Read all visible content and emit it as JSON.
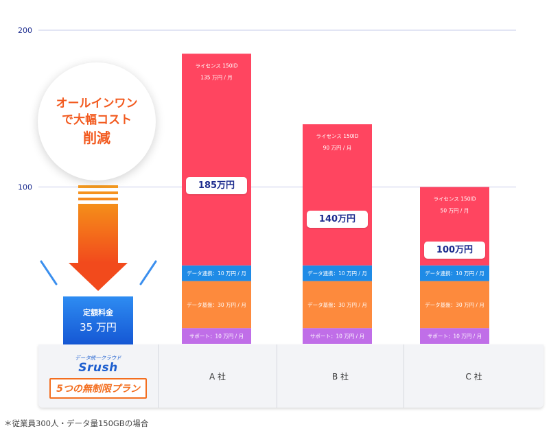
{
  "chart_data": {
    "type": "bar",
    "stacked": true,
    "unit": "万円",
    "yticks": [
      100,
      200
    ],
    "ylim": [
      0,
      200
    ],
    "categories": [
      "A 社",
      "B 社",
      "C 社"
    ],
    "series": [
      {
        "name": "サポート",
        "values": [
          10,
          10,
          10
        ],
        "labels": [
          "サポート：10 万円 / 月",
          "サポート：10 万円 / 月",
          "サポート：10 万円 / 月"
        ],
        "color": "#c06ee8"
      },
      {
        "name": "データ基盤",
        "values": [
          30,
          30,
          30
        ],
        "labels": [
          "データ基盤：30 万円 / 月",
          "データ基盤：30 万円 / 月",
          "データ基盤：30 万円 / 月"
        ],
        "color": "#fd8a3d"
      },
      {
        "name": "データ連携",
        "values": [
          10,
          10,
          10
        ],
        "labels": [
          "データ連携：10 万円 / 月",
          "データ連携：10 万円 / 月",
          "データ連携：10 万円 / 月"
        ],
        "color": "#1f8be6"
      },
      {
        "name": "ライセンス",
        "values": [
          135,
          90,
          50
        ],
        "labels": [
          "ライセンス 150ID",
          "ライセンス 150ID",
          "ライセンス 150ID"
        ],
        "sublabels": [
          "135 万円 / 月",
          "90 万円 / 月",
          "50 万円 / 月"
        ],
        "color": "#ff4560"
      }
    ],
    "totals": [
      185,
      140,
      100
    ],
    "total_labels": [
      "185万円",
      "140万円",
      "100万円"
    ],
    "baseline": {
      "value": 35,
      "label1": "定額料金",
      "label2": "35 万円"
    }
  },
  "callout": {
    "line1": "オールインワン",
    "line2": "で大幅コスト",
    "line3": "削減"
  },
  "brand": {
    "tagline": "データ統一クラウド",
    "name": "Srush",
    "plan": "5つの無制限プラン"
  },
  "footnote": "＊従業員300人・データ量150GBの場合",
  "colors": {
    "accent": "#f25a1f",
    "grid": "#c5cbe8",
    "tick": "#1b2b8e"
  }
}
